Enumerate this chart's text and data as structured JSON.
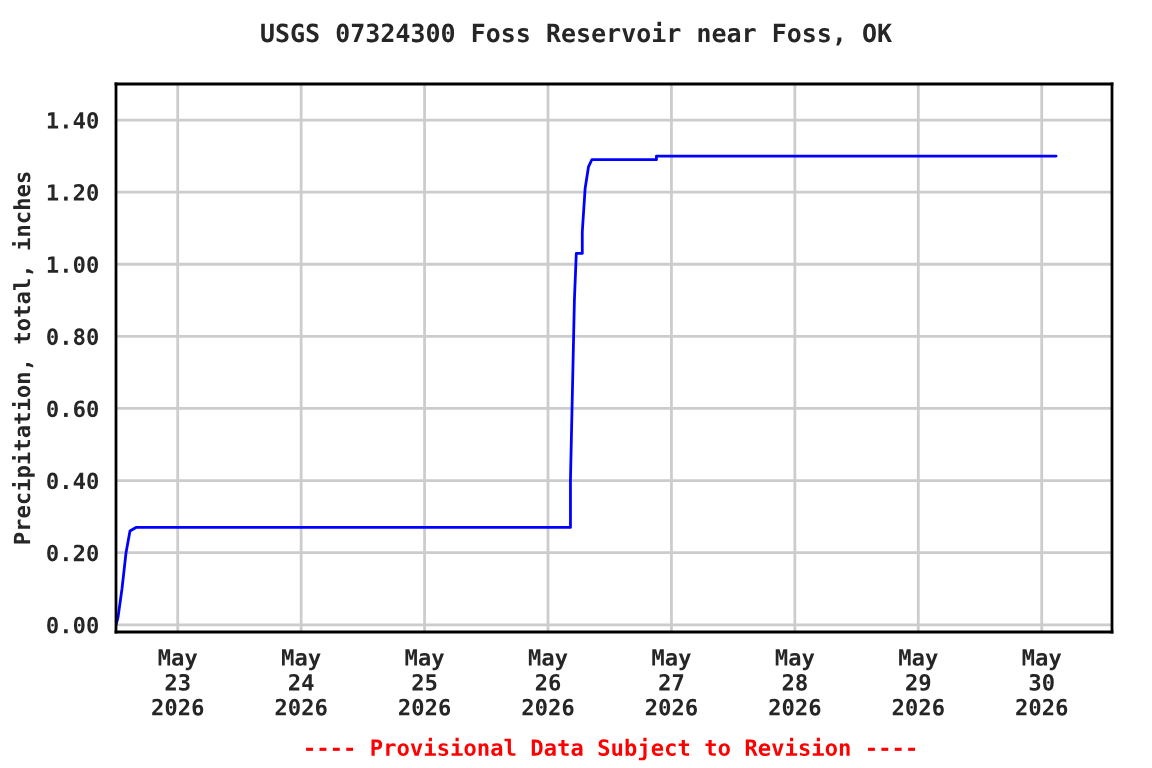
{
  "chart_data": {
    "type": "line",
    "title": "USGS 07324300 Foss Reservoir near Foss, OK",
    "ylabel": "Precipitation, total, inches",
    "annotations": [
      "---- Provisional Data Subject to Revision ----"
    ],
    "x": [
      "2026-05-22T12:00",
      "2026-05-22T12:23",
      "2026-05-22T13:10",
      "2026-05-22T13:57",
      "2026-05-22T14:43",
      "2026-05-22T15:53",
      "2026-05-26T04:22",
      "2026-05-26T04:22",
      "2026-05-26T04:45",
      "2026-05-26T05:08",
      "2026-05-26T05:30",
      "2026-05-26T06:40",
      "2026-05-26T06:40",
      "2026-05-26T07:13",
      "2026-05-26T07:52",
      "2026-05-26T08:31",
      "2026-05-26T21:05",
      "2026-05-26T21:05",
      "2026-05-30T02:48"
    ],
    "series": [
      {
        "color": "#0000ff",
        "values": [
          0.0,
          0.02,
          0.1,
          0.2,
          0.26,
          0.27,
          0.27,
          0.4,
          0.65,
          0.9,
          1.03,
          1.03,
          1.09,
          1.21,
          1.27,
          1.29,
          1.29,
          1.3,
          1.3
        ]
      }
    ],
    "xlim": [
      "2026-05-22T12:00",
      "2026-05-30T13:40"
    ],
    "xticks": [
      {
        "value": "2026-05-23",
        "label": "May\n23\n2026"
      },
      {
        "value": "2026-05-24",
        "label": "May\n24\n2026"
      },
      {
        "value": "2026-05-25",
        "label": "May\n25\n2026"
      },
      {
        "value": "2026-05-26",
        "label": "May\n26\n2026"
      },
      {
        "value": "2026-05-27",
        "label": "May\n27\n2026"
      },
      {
        "value": "2026-05-28",
        "label": "May\n28\n2026"
      },
      {
        "value": "2026-05-29",
        "label": "May\n29\n2026"
      },
      {
        "value": "2026-05-30",
        "label": "May\n30\n2026"
      }
    ],
    "ylim": [
      -0.02,
      1.5
    ],
    "yticks": [
      {
        "value": 0,
        "label": "0.00"
      },
      {
        "value": 0.2,
        "label": "0.20"
      },
      {
        "value": 0.4,
        "label": "0.40"
      },
      {
        "value": 0.6,
        "label": "0.60"
      },
      {
        "value": 0.8,
        "label": "0.80"
      },
      {
        "value": 1.0,
        "label": "1.00"
      },
      {
        "value": 1.2,
        "label": "1.20"
      },
      {
        "value": 1.4,
        "label": "1.40"
      }
    ],
    "grid": true,
    "legend": false,
    "marker": "none",
    "line_style": "solid"
  }
}
